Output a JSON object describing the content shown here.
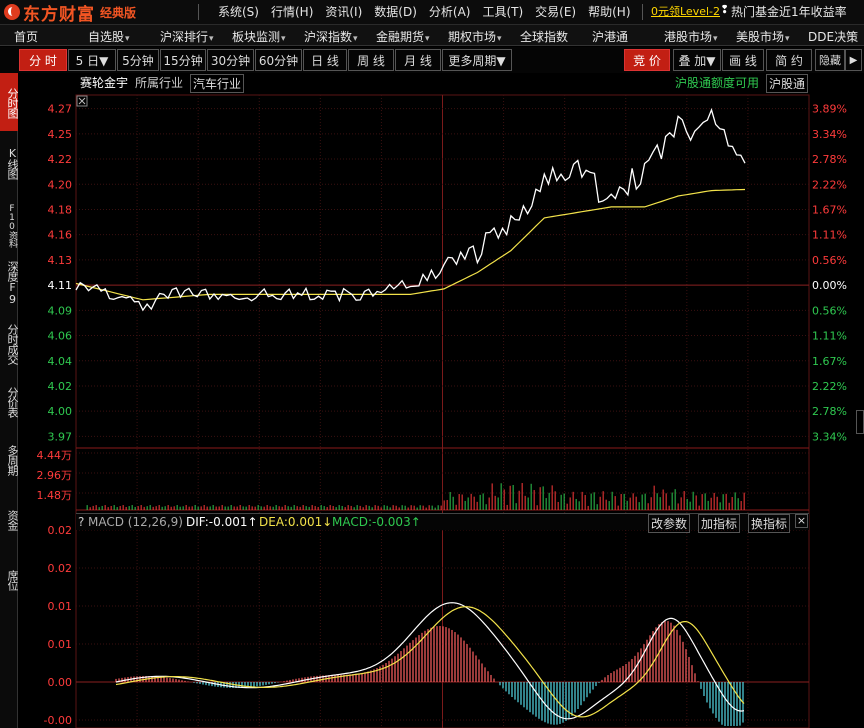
{
  "app": {
    "logo_text": "东方财富",
    "edition": "经典版",
    "menu": [
      "系统(S)",
      "行情(H)",
      "资讯(I)",
      "数据(D)",
      "分析(A)",
      "工具(T)",
      "交易(E)",
      "帮助(H)"
    ],
    "level2_link": "0元领Level-2",
    "ticker_text": "热门基金近1年收益率"
  },
  "nav": {
    "items": [
      {
        "label": "首页",
        "dropdown": false
      },
      {
        "label": "自选股",
        "dropdown": true
      },
      {
        "label": "沪深排行",
        "dropdown": true
      },
      {
        "label": "板块监测",
        "dropdown": true
      },
      {
        "label": "沪深指数",
        "dropdown": true
      },
      {
        "label": "金融期货",
        "dropdown": true
      },
      {
        "label": "期权市场",
        "dropdown": true
      },
      {
        "label": "全球指数",
        "dropdown": false
      },
      {
        "label": "沪港通",
        "dropdown": false
      },
      {
        "label": "港股市场",
        "dropdown": true
      },
      {
        "label": "美股市场",
        "dropdown": true
      },
      {
        "label": "DDE决策",
        "dropdown": false
      }
    ]
  },
  "toolbar": {
    "periods": [
      "分 时",
      "5 日▼",
      "5分钟",
      "15分钟",
      "30分钟",
      "60分钟",
      "日 线",
      "周 线",
      "月 线",
      "更多周期▼"
    ],
    "active_period": "分 时",
    "right": [
      "竞 价",
      "叠 加▼",
      "画 线",
      "简 约"
    ],
    "hide_label": "隐藏"
  },
  "left_tabs": [
    "分时图",
    "K线图",
    "F10资料",
    "深度F9",
    "分时成交",
    "分价表",
    "多周期",
    "资金",
    "席位"
  ],
  "stock": {
    "name": "赛轮金宇",
    "industry_label": "所属行业",
    "industry": "汽车行业",
    "hgt_quota": "沪股通额度可用",
    "hgt_tag": "沪股通"
  },
  "price_axis": {
    "left": [
      "4.27",
      "4.25",
      "4.22",
      "4.20",
      "4.18",
      "4.16",
      "4.13",
      "4.11",
      "4.09",
      "4.06",
      "4.04",
      "4.02",
      "4.00",
      "3.97"
    ],
    "right": [
      "3.89%",
      "3.34%",
      "2.78%",
      "2.22%",
      "1.67%",
      "1.11%",
      "0.56%",
      "0.00%",
      "0.56%",
      "1.11%",
      "1.67%",
      "2.22%",
      "2.78%",
      "3.34%"
    ],
    "prev_close": 4.11,
    "range": [
      3.97,
      4.27
    ]
  },
  "volume_axis": {
    "labels": [
      "4.44万",
      "2.96万",
      "1.48万"
    ],
    "max": 44400
  },
  "macd": {
    "title": "MACD (12,26,9)",
    "dif": "DIF:-0.001↑",
    "dea": "DEA:0.001↓",
    "macd": "MACD:-0.003↑",
    "buttons": [
      "改参数",
      "加指标",
      "换指标"
    ],
    "axis": [
      "0.02",
      "0.02",
      "0.01",
      "0.01",
      "0.00",
      "-0.00"
    ]
  },
  "colors": {
    "up": "#ff3b3b",
    "down": "#2fc950",
    "price_line": "#ffffff",
    "avg_line": "#f2e24a",
    "macd_up": "#ff6060",
    "macd_down": "#54d8e6",
    "accent": "#c21f13",
    "grid": "#3a1010"
  },
  "chart_data": {
    "type": "line",
    "title": "",
    "series": [
      {
        "name": "",
        "x": [
          0,
          12,
          24,
          36,
          48,
          60,
          72,
          84,
          96,
          108,
          120,
          132,
          144,
          156,
          168,
          180,
          192,
          204,
          216,
          228,
          240
        ],
        "values": [
          4.11,
          4.1,
          4.09,
          4.1,
          4.1,
          4.1,
          4.1,
          4.1,
          4.1,
          4.1,
          4.11,
          4.12,
          4.14,
          4.16,
          4.21,
          4.21,
          4.19,
          4.21,
          4.25,
          4.26,
          4.22
        ]
      },
      {
        "name": "",
        "x": [
          0,
          24,
          48,
          72,
          96,
          120,
          132,
          144,
          156,
          168,
          180,
          192,
          204,
          216,
          228,
          240
        ],
        "values": [
          4.11,
          4.095,
          4.1,
          4.1,
          4.1,
          4.1,
          4.105,
          4.12,
          4.14,
          4.17,
          4.175,
          4.18,
          4.18,
          4.19,
          4.195,
          4.196
        ]
      }
    ],
    "xlabel": "",
    "ylabel": "",
    "ylim": [
      3.97,
      4.27
    ]
  }
}
